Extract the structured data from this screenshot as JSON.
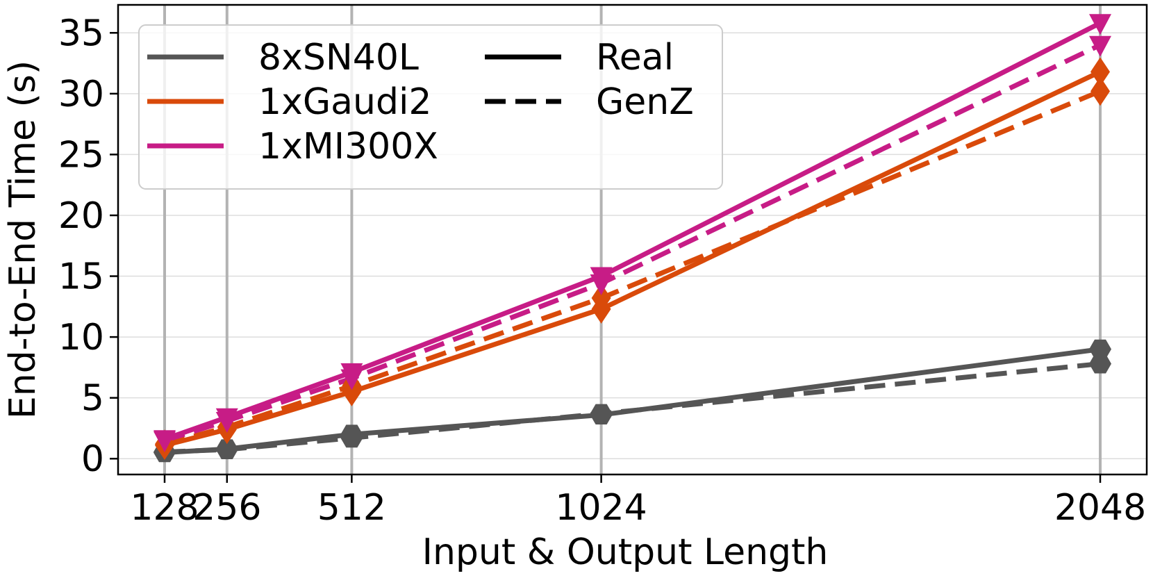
{
  "chart_data": {
    "type": "line",
    "xlabel": "Input & Output Length",
    "ylabel": "End-to-End Time (s)",
    "x": [
      128,
      256,
      512,
      1024,
      2048
    ],
    "x_ticks": [
      "128",
      "256",
      "512",
      "1024",
      "2048"
    ],
    "y_ticks": [
      "0",
      "5",
      "10",
      "15",
      "20",
      "25",
      "30",
      "35"
    ],
    "y_tick_values": [
      0,
      5,
      10,
      15,
      20,
      25,
      30,
      35
    ],
    "xlim": [
      128,
      2048
    ],
    "ylim": [
      -1.3,
      37.3
    ],
    "grid": true,
    "legend_position": "top-left",
    "series": [
      {
        "name": "8xSN40L",
        "style": "Real",
        "color": "#555555",
        "marker": "hexagon",
        "values": [
          0.5,
          0.8,
          2.0,
          3.6,
          9.0
        ]
      },
      {
        "name": "8xSN40L",
        "style": "GenZ",
        "color": "#555555",
        "marker": "hexagon",
        "values": [
          0.55,
          0.75,
          1.7,
          3.7,
          7.8
        ]
      },
      {
        "name": "1xGaudi2",
        "style": "Real",
        "color": "#d94a0a",
        "marker": "diamond",
        "values": [
          1.1,
          2.4,
          5.5,
          12.3,
          31.8
        ]
      },
      {
        "name": "1xGaudi2",
        "style": "GenZ",
        "color": "#d94a0a",
        "marker": "diamond",
        "values": [
          1.2,
          2.6,
          6.0,
          13.2,
          30.2
        ]
      },
      {
        "name": "1xMI300X",
        "style": "Real",
        "color": "#c71c86",
        "marker": "triangle-down",
        "values": [
          1.6,
          3.4,
          7.1,
          15.0,
          35.8
        ]
      },
      {
        "name": "1xMI300X",
        "style": "GenZ",
        "color": "#c71c86",
        "marker": "triangle-down",
        "values": [
          1.5,
          3.1,
          6.6,
          14.4,
          34.0
        ]
      }
    ],
    "legend": {
      "devices": [
        {
          "label": "8xSN40L",
          "color": "#555555"
        },
        {
          "label": "1xGaudi2",
          "color": "#d94a0a"
        },
        {
          "label": "1xMI300X",
          "color": "#c71c86"
        }
      ],
      "styles": [
        {
          "label": "Real",
          "dash": "solid"
        },
        {
          "label": "GenZ",
          "dash": "dashed"
        }
      ]
    }
  }
}
